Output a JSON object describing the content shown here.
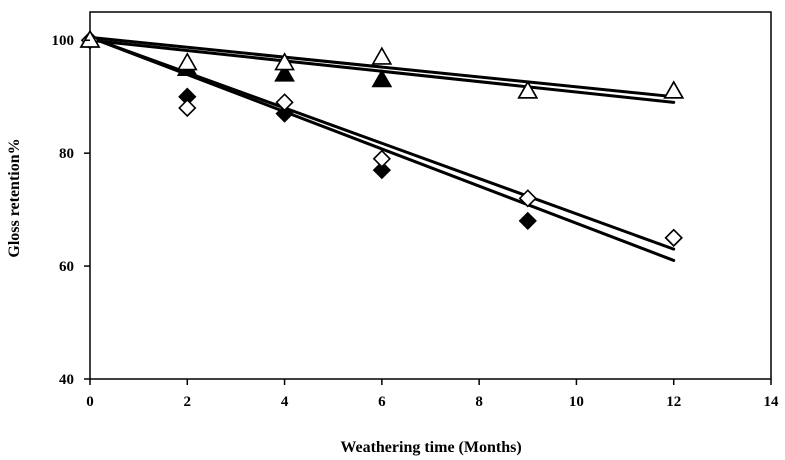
{
  "chart_data": {
    "type": "scatter",
    "title": "",
    "xlabel": "Weathering time (Months)",
    "ylabel": "Gloss retention%",
    "xlim": [
      0,
      14
    ],
    "ylim": [
      40,
      105
    ],
    "x_ticks": [
      0,
      2,
      4,
      6,
      8,
      10,
      12,
      14
    ],
    "y_ticks": [
      40,
      60,
      80,
      100
    ],
    "grid": false,
    "legend": "none",
    "series": [
      {
        "marker": "filled-triangle",
        "x": [
          0,
          2,
          4,
          6,
          9,
          12
        ],
        "y": [
          100,
          95,
          94,
          93,
          91,
          91
        ],
        "trendline": [
          [
            0,
            100
          ],
          [
            12,
            89
          ]
        ]
      },
      {
        "marker": "open-triangle",
        "x": [
          0,
          2,
          4,
          6,
          9,
          12
        ],
        "y": [
          100,
          96,
          96,
          97,
          91,
          91
        ],
        "trendline": [
          [
            0,
            100.5
          ],
          [
            12,
            90
          ]
        ]
      },
      {
        "marker": "filled-diamond",
        "x": [
          0,
          2,
          4,
          6,
          9,
          12
        ],
        "y": [
          100,
          90,
          87,
          77,
          68,
          65
        ],
        "trendline": [
          [
            0,
            100.5
          ],
          [
            12,
            61
          ]
        ]
      },
      {
        "marker": "open-diamond",
        "x": [
          0,
          2,
          4,
          6,
          9,
          12
        ],
        "y": [
          100,
          88,
          89,
          79,
          72,
          65
        ],
        "trendline": [
          [
            0,
            100.5
          ],
          [
            12,
            63
          ]
        ]
      }
    ],
    "colors": {
      "axis": "#000000",
      "line": "#000000",
      "marker_fill": "#000000",
      "marker_open": "#ffffff"
    }
  }
}
